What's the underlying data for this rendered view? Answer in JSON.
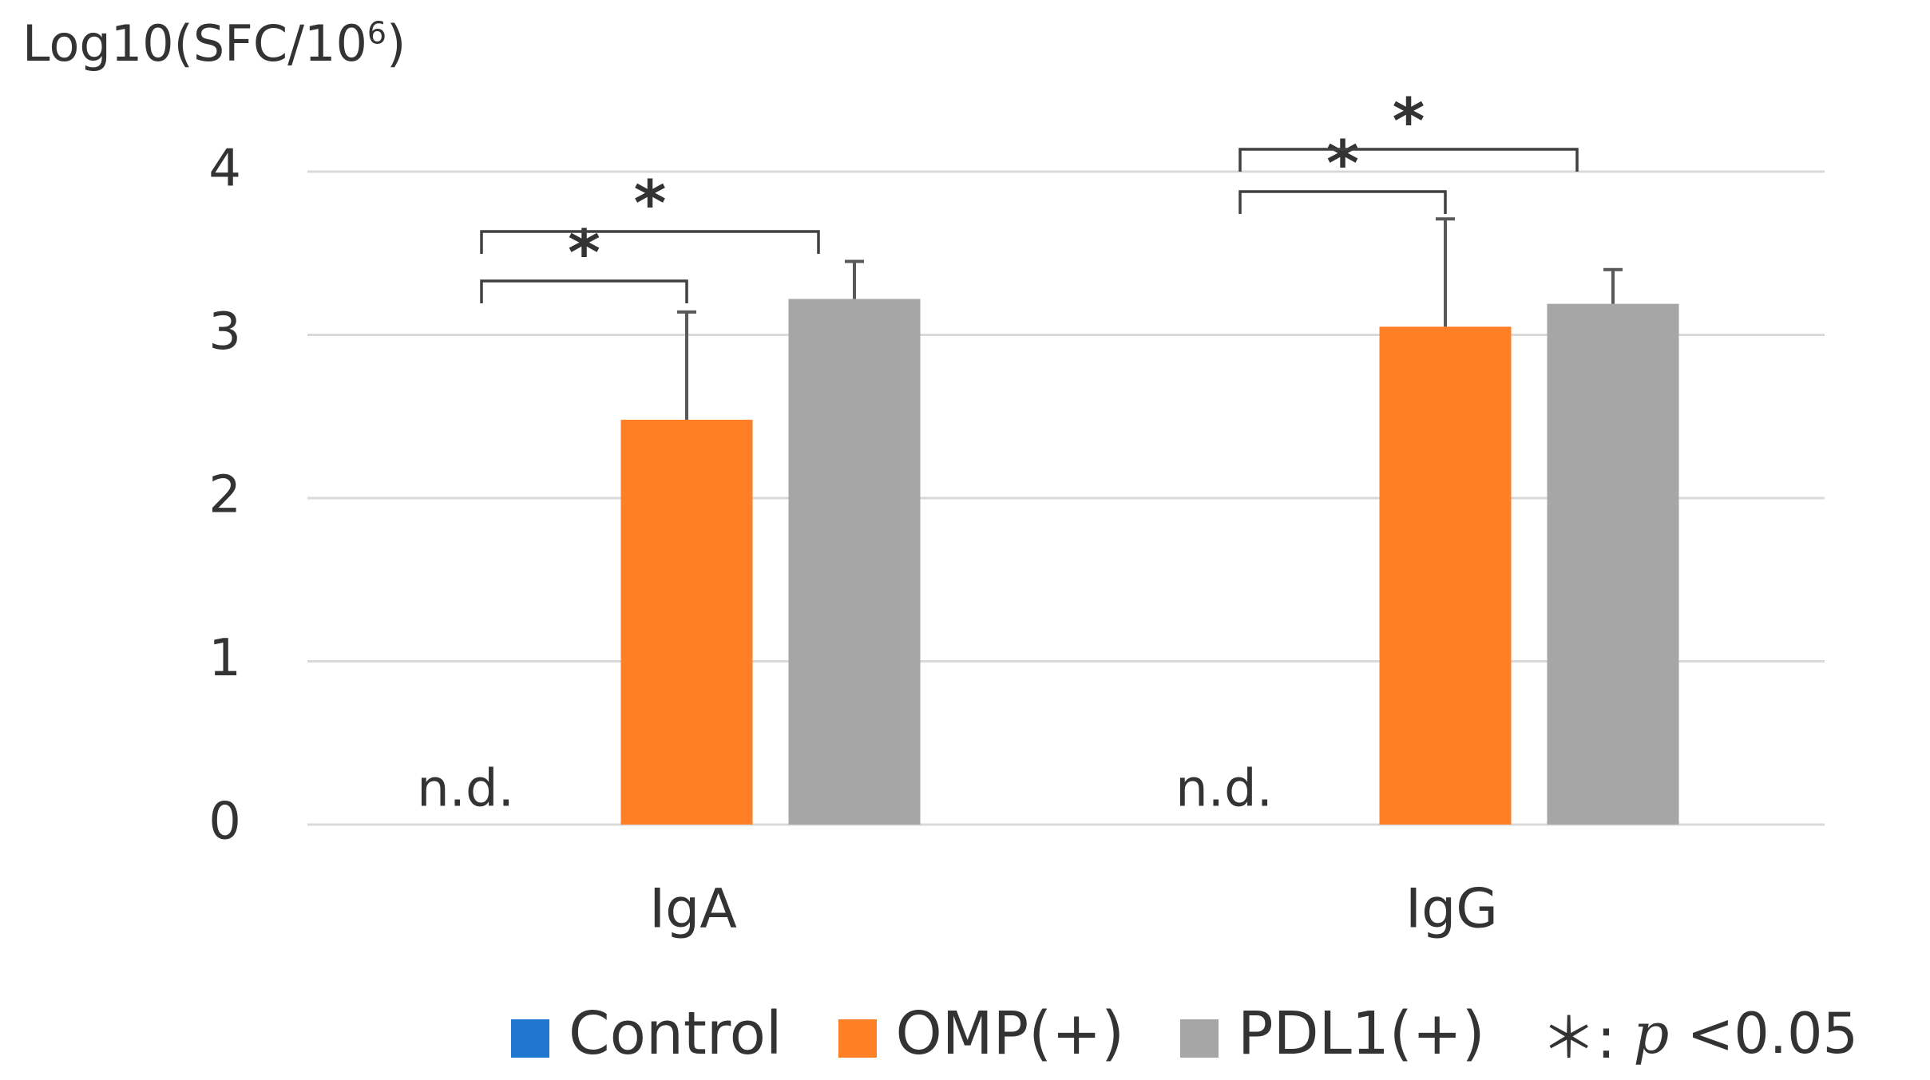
{
  "chart_data": {
    "type": "bar",
    "ylabel": {
      "base": "Log10(SFC/10",
      "sup": "6",
      "close": ")"
    },
    "ylim": [
      0,
      4
    ],
    "yticks": [
      "0",
      "1",
      "2",
      "3",
      "4"
    ],
    "grid": true,
    "categories": [
      "IgA",
      "IgG"
    ],
    "series": [
      {
        "name": "Control",
        "color": "#1F77D0",
        "values": [
          null,
          null
        ],
        "labels": [
          "n.d.",
          "n.d."
        ]
      },
      {
        "name": "OMP(+)",
        "color": "#FF7F27",
        "values": [
          2.48,
          3.05
        ],
        "errors": [
          0.66,
          0.66
        ]
      },
      {
        "name": "PDL1(+)",
        "color": "#A6A6A6",
        "values": [
          3.22,
          3.19
        ],
        "errors": [
          0.23,
          0.21
        ]
      }
    ],
    "significance": [
      {
        "category": "IgA",
        "from": "Control",
        "to": "OMP(+)",
        "label": "*"
      },
      {
        "category": "IgA",
        "from": "Control",
        "to": "PDL1(+)",
        "label": "*"
      },
      {
        "category": "IgG",
        "from": "Control",
        "to": "OMP(+)",
        "label": "*"
      },
      {
        "category": "IgG",
        "from": "Control",
        "to": "PDL1(+)",
        "label": "*"
      }
    ],
    "legend_position": "bottom",
    "annotation": {
      "symbol": "＊:",
      "p": "p",
      "rest": "<0.05"
    }
  }
}
